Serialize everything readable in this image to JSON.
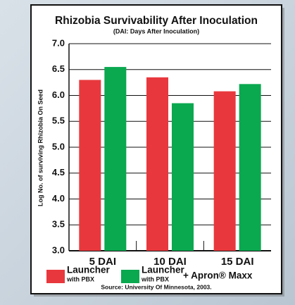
{
  "chart_data": {
    "type": "bar",
    "title": "Rhizobia Survivability After Inoculation",
    "subtitle": "(DAI: Days After Inoculation)",
    "y_label": "Log No. of surviving Rhizobia On Seed",
    "categories": [
      "5 DAI",
      "10 DAI",
      "15 DAI"
    ],
    "series": [
      {
        "color": "#e8383d",
        "values": [
          6.3,
          6.35,
          6.08
        ]
      },
      {
        "color": "#0aa84f",
        "values": [
          6.55,
          5.85,
          6.22
        ]
      }
    ],
    "legend": [
      {
        "main": "Launcher",
        "sub": "with PBX"
      },
      {
        "main": "Launcher",
        "sub": "with PBX",
        "extra": "+ Apron® Maxx"
      }
    ],
    "source": "Source: University Of Minnesota, 2003.",
    "ylim": [
      3,
      7
    ],
    "yticks": [
      {
        "value": 3,
        "label": "3.0"
      },
      {
        "value": 3.5,
        "label": "3.5"
      },
      {
        "value": 4,
        "label": "4.0"
      },
      {
        "value": 4.5,
        "label": "4.5"
      },
      {
        "value": 5,
        "label": "5.0"
      },
      {
        "value": 5.5,
        "label": "5.5"
      },
      {
        "value": 6,
        "label": "6.0"
      },
      {
        "value": 6.5,
        "label": "6.5"
      },
      {
        "value": 7,
        "label": "7.0"
      }
    ],
    "grid": true
  }
}
